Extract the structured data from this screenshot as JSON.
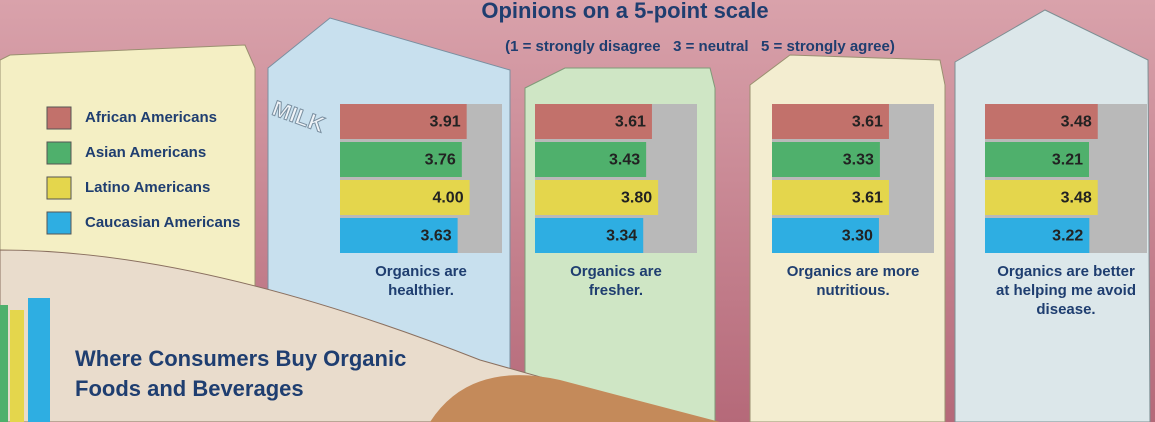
{
  "chart_data": {
    "type": "bar",
    "orientation": "horizontal",
    "title": "Opinions on a 5-point scale",
    "subtitle": "(1 = strongly disagree   3 = neutral   5 = strongly agree)",
    "categories": [
      "Organics are healthier.",
      "Organics are fresher.",
      "Organics are more nutritious.",
      "Organics are better at helping me avoid disease."
    ],
    "series": [
      {
        "name": "African Americans",
        "color": "#c2716b",
        "values": [
          3.91,
          3.61,
          3.61,
          3.48
        ],
        "value_labels": [
          "3.91",
          "3.61",
          "3.61",
          "3.48"
        ]
      },
      {
        "name": "Asian Americans",
        "color": "#4fb06c",
        "values": [
          3.76,
          3.43,
          3.33,
          3.21
        ],
        "value_labels": [
          "3.76",
          "3.43",
          "3.33",
          "3.21"
        ]
      },
      {
        "name": "Latino Americans",
        "color": "#e4d64c",
        "values": [
          4.0,
          3.8,
          3.61,
          3.48
        ],
        "value_labels": [
          "4.00",
          "3.80",
          "3.61",
          "3.48"
        ]
      },
      {
        "name": "Caucasian Americans",
        "color": "#2eaee2",
        "values": [
          3.63,
          3.34,
          3.3,
          3.22
        ],
        "value_labels": [
          "3.63",
          "3.34",
          "3.30",
          "3.22"
        ]
      }
    ],
    "xlim": [
      0,
      5
    ],
    "legend": "left"
  },
  "carton_text": "MILK",
  "section_heading": "Where Consumers Buy Organic Foods and Beverages"
}
